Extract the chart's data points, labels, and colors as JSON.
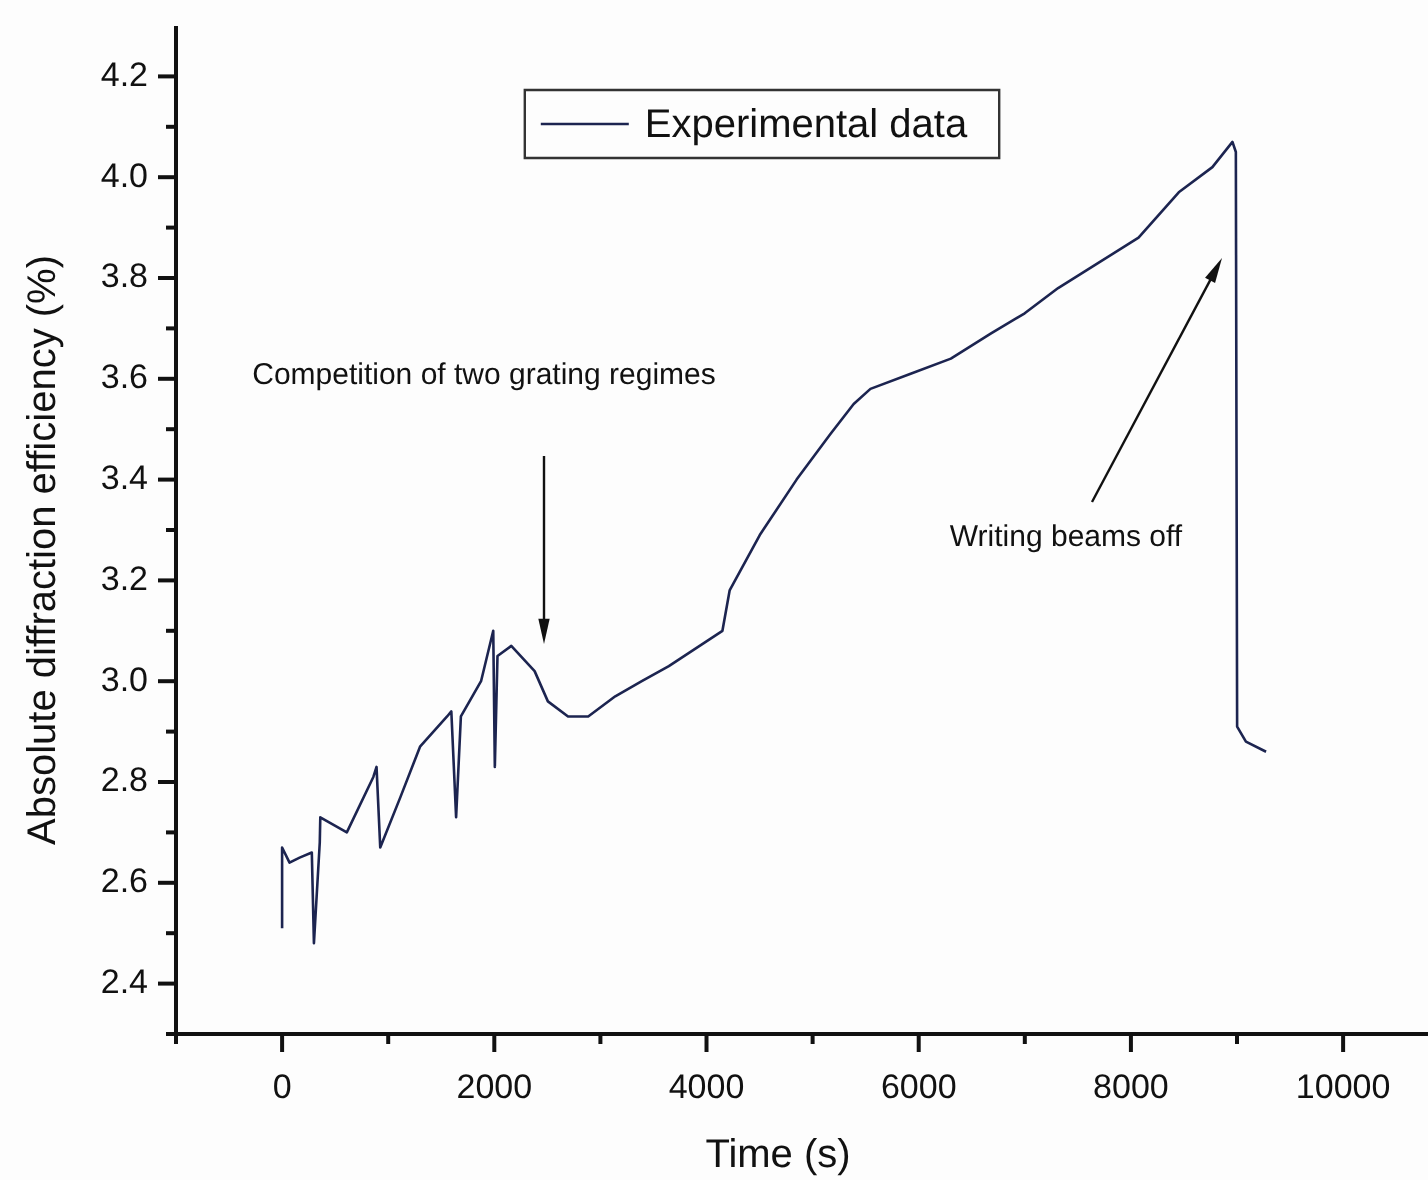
{
  "chart_data": {
    "type": "line",
    "xlabel": "Time (s)",
    "ylabel": "Absolute diffraction efficiency (%)",
    "xlim": [
      -1000,
      10800
    ],
    "ylim": [
      2.3,
      4.3
    ],
    "xticks": [
      {
        "value": -1000,
        "label": null
      },
      0,
      {
        "value": 1000,
        "label": null
      },
      2000,
      {
        "value": 3000,
        "label": null
      },
      4000,
      {
        "value": 5000,
        "label": null
      },
      6000,
      {
        "value": 7000,
        "label": null
      },
      8000,
      {
        "value": 9000,
        "label": null
      },
      10000
    ],
    "yticks": [
      {
        "value": 2.3,
        "label": null
      },
      2.4,
      {
        "value": 2.5,
        "label": null
      },
      2.6,
      {
        "value": 2.7,
        "label": null
      },
      2.8,
      {
        "value": 2.9,
        "label": null
      },
      {
        "value": 3.0,
        "label": "3.0"
      },
      {
        "value": 3.1,
        "label": null
      },
      3.2,
      {
        "value": 3.3,
        "label": null
      },
      3.4,
      {
        "value": 3.5,
        "label": null
      },
      3.6,
      {
        "value": 3.7,
        "label": null
      },
      3.8,
      {
        "value": 3.9,
        "label": null
      },
      {
        "value": 4.0,
        "label": "4.0"
      },
      {
        "value": 4.1,
        "label": null
      },
      4.2
    ],
    "grid": false,
    "legend": "top",
    "marker": "none",
    "line_style": "solid",
    "annotations": [
      "Competition of two grating regimes",
      "Writing beams off"
    ],
    "series": [
      {
        "name": "Experimental data",
        "color": "#1c2450",
        "x": [
          0,
          0,
          70,
          165,
          280,
          300,
          355,
          360,
          610,
          860,
          890,
          925,
          1115,
          1300,
          1555,
          1595,
          1640,
          1685,
          1875,
          1990,
          2005,
          2030,
          2160,
          2380,
          2505,
          2695,
          2885,
          3140,
          3390,
          3645,
          4150,
          4218,
          4502,
          4849,
          5166,
          5387,
          5545,
          5924,
          6303,
          6682,
          6999,
          7314,
          7693,
          8072,
          8451,
          8768,
          8957,
          8989,
          9001,
          9084,
          9274
        ],
        "values": [
          2.51,
          2.67,
          2.64,
          2.65,
          2.66,
          2.48,
          2.68,
          2.73,
          2.7,
          2.81,
          2.83,
          2.67,
          2.77,
          2.87,
          2.93,
          2.94,
          2.73,
          2.93,
          3.0,
          3.1,
          2.83,
          3.05,
          3.07,
          3.02,
          2.96,
          2.93,
          2.93,
          2.97,
          3.0,
          3.03,
          3.1,
          3.18,
          3.29,
          3.4,
          3.49,
          3.55,
          3.58,
          3.61,
          3.64,
          3.69,
          3.73,
          3.78,
          3.83,
          3.88,
          3.97,
          4.02,
          4.07,
          4.05,
          2.91,
          2.88,
          2.86
        ]
      }
    ]
  }
}
